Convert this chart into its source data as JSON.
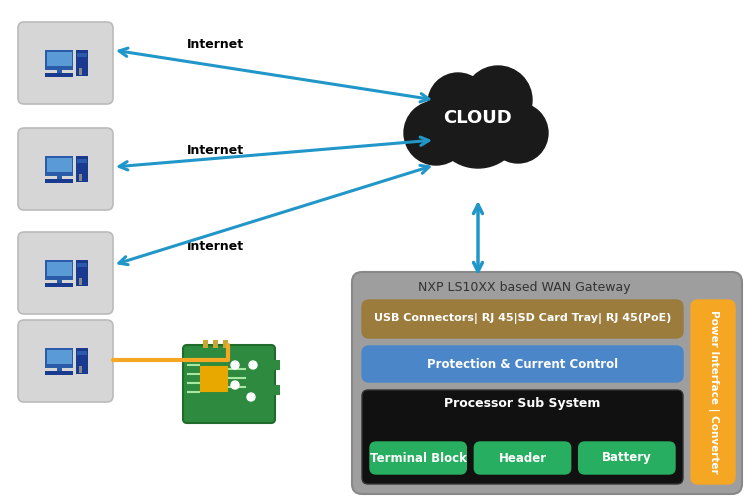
{
  "bg_color": "#ffffff",
  "cloud_color": "#1a1a1a",
  "cloud_text": "CLOUD",
  "cloud_text_color": "#ffffff",
  "arrow_color": "#2196c8",
  "orange_line_color": "#f5a623",
  "internet_label_color": "#000000",
  "computer_box_color": "#d6d6d6",
  "computer_box_ec": "#bbbbbb",
  "gateway_box_color": "#9e9e9e",
  "gateway_title": "NXP LS10XX based WAN Gateway",
  "gateway_title_color": "#333333",
  "usb_bar_color": "#9c7c3c",
  "usb_bar_text": "USB Connectors| RJ 45|SD Card Tray| RJ 45(PoE)",
  "usb_bar_text_color": "#ffffff",
  "protection_bar_color": "#4a86c8",
  "protection_bar_text": "Protection & Current Control",
  "protection_bar_text_color": "#ffffff",
  "processor_box_color": "#111111",
  "processor_box_text": "Processor Sub System",
  "processor_box_text_color": "#ffffff",
  "green_btn_color": "#27ae60",
  "green_btn_labels": [
    "Terminal Block",
    "Header",
    "Battery"
  ],
  "green_btn_text_color": "#ffffff",
  "power_bar_color": "#f5a623",
  "power_bar_text": "Power Interface | Converter",
  "power_bar_text_color": "#ffffff",
  "pcb_color": "#2d8a3e",
  "pcb_chip_color": "#e8a800"
}
